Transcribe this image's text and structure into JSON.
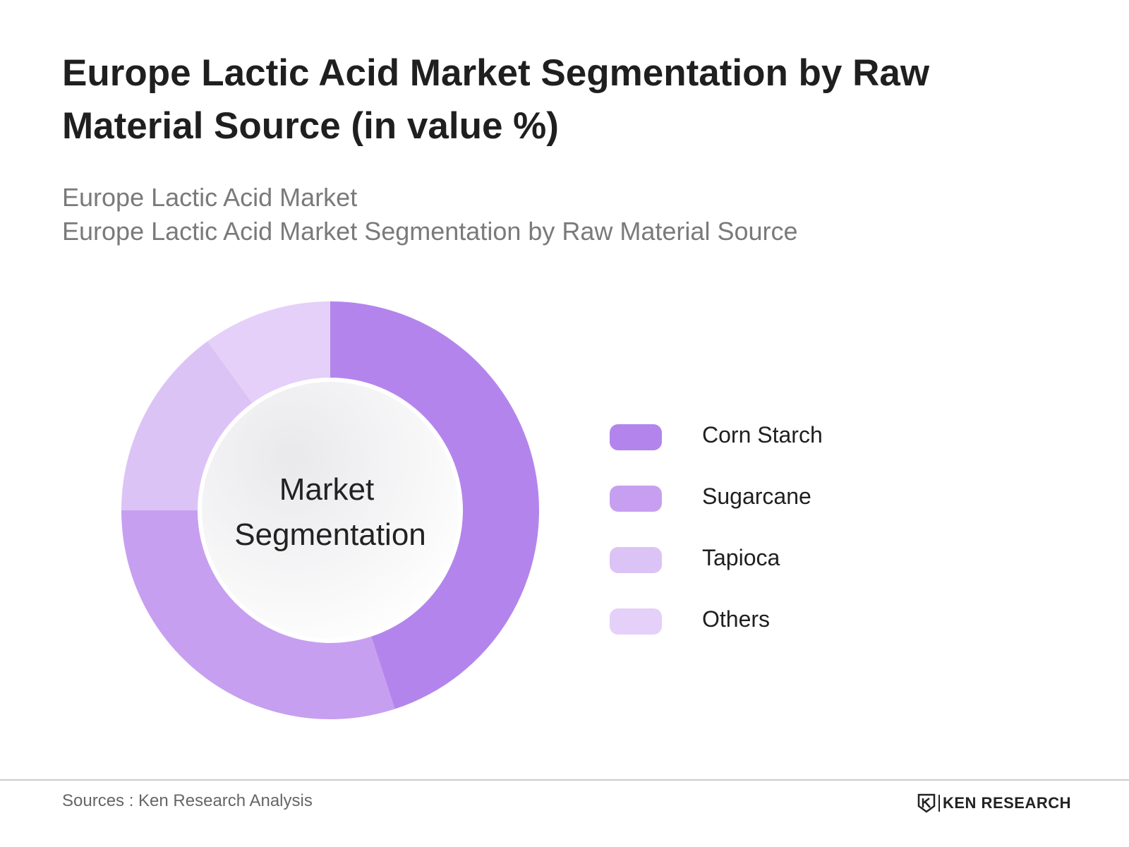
{
  "title": "Europe Lactic Acid Market Segmentation by Raw Material Source (in value %)",
  "subtitle_line1": "Europe Lactic Acid Market",
  "subtitle_line2": "Europe Lactic Acid Market Segmentation by Raw Material Source",
  "center_label_line1": "Market",
  "center_label_line2": "Segmentation",
  "chart_data": {
    "type": "pie",
    "title": "Europe Lactic Acid Market Segmentation by Raw Material Source (in value %)",
    "categories": [
      "Corn Starch",
      "Sugarcane",
      "Tapioca",
      "Others"
    ],
    "values": [
      45,
      30,
      15,
      10
    ],
    "colors": [
      "#b385ec",
      "#c79ff0",
      "#dcc3f6",
      "#e4d0f8"
    ],
    "legend_position": "right",
    "donut": true
  },
  "footer": {
    "source": "Sources : Ken Research Analysis",
    "logo_text": "KEN RESEARCH"
  }
}
